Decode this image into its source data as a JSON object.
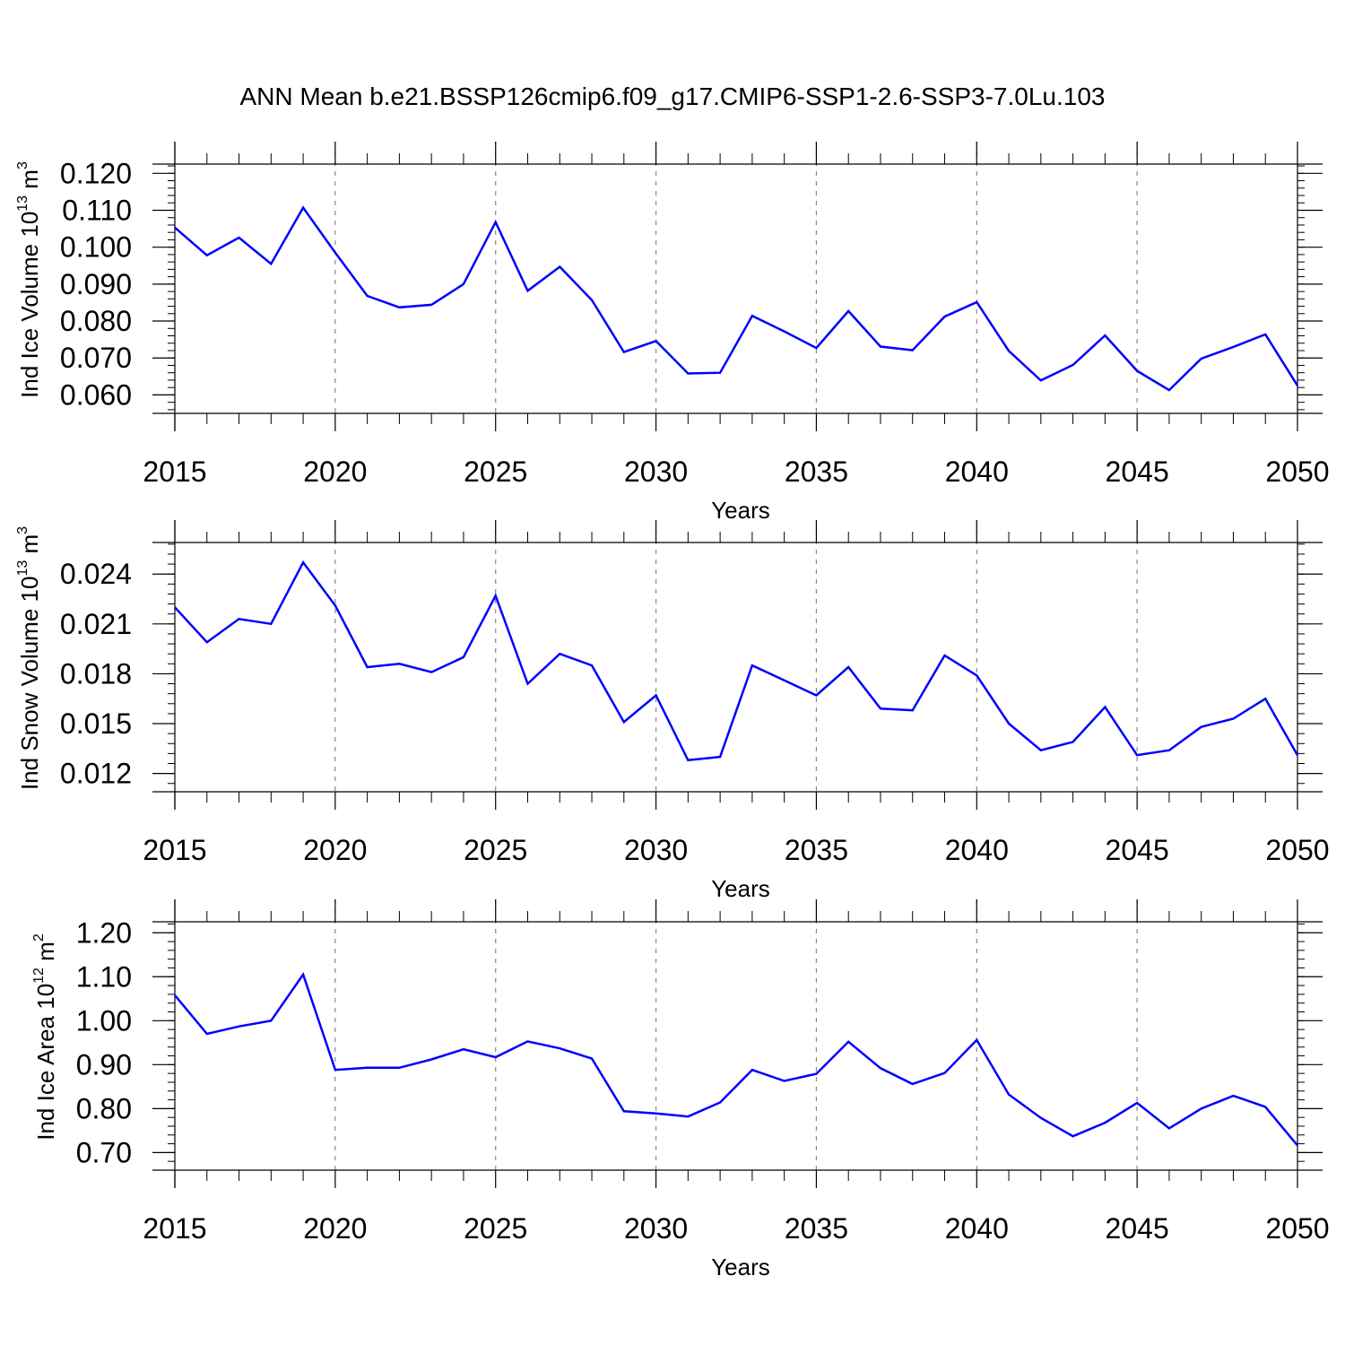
{
  "title": "ANN Mean b.e21.BSSP126cmip6.f09_g17.CMIP6-SSP1-2.6-SSP3-7.0Lu.103",
  "colors": {
    "line": "#0000ff",
    "axis": "#000000",
    "grid": "#888888"
  },
  "chart_data": [
    {
      "type": "line",
      "ylabel": {
        "text": "Ind Ice Volume 10",
        "exp": "13",
        "unit": " m",
        "unit_exp": "3"
      },
      "xlabel": "Years",
      "xlim": [
        2015,
        2050
      ],
      "ylim": [
        0.055,
        0.1225
      ],
      "yticks": [
        "0.060",
        "0.070",
        "0.080",
        "0.090",
        "0.100",
        "0.110",
        "0.120"
      ],
      "xticks": [
        "2015",
        "2020",
        "2025",
        "2030",
        "2035",
        "2040",
        "2045",
        "2050"
      ],
      "grid": "dashed vertical at major x ticks",
      "x": [
        2015,
        2016,
        2017,
        2018,
        2019,
        2020,
        2021,
        2022,
        2023,
        2024,
        2025,
        2026,
        2027,
        2028,
        2029,
        2030,
        2031,
        2032,
        2033,
        2034,
        2035,
        2036,
        2037,
        2038,
        2039,
        2040,
        2041,
        2042,
        2043,
        2044,
        2045,
        2046,
        2047,
        2048,
        2049,
        2050
      ],
      "y": [
        0.1053,
        0.0978,
        0.1026,
        0.0955,
        0.1107,
        0.0985,
        0.0868,
        0.0837,
        0.0844,
        0.09,
        0.1068,
        0.0882,
        0.0947,
        0.0857,
        0.0716,
        0.0746,
        0.0658,
        0.066,
        0.0814,
        0.0772,
        0.0727,
        0.0827,
        0.0731,
        0.0721,
        0.0812,
        0.0851,
        0.0719,
        0.0639,
        0.0681,
        0.0761,
        0.0665,
        0.0613,
        0.0698,
        0.073,
        0.0764,
        0.0625
      ]
    },
    {
      "type": "line",
      "ylabel": {
        "text": "Ind Snow Volume 10",
        "exp": "13",
        "unit": " m",
        "unit_exp": "3"
      },
      "xlabel": "Years",
      "xlim": [
        2015,
        2050
      ],
      "ylim": [
        0.0109,
        0.0259
      ],
      "yticks": [
        "0.012",
        "0.015",
        "0.018",
        "0.021",
        "0.024"
      ],
      "xticks": [
        "2015",
        "2020",
        "2025",
        "2030",
        "2035",
        "2040",
        "2045",
        "2050"
      ],
      "grid": "dashed vertical at major x ticks",
      "x": [
        2015,
        2016,
        2017,
        2018,
        2019,
        2020,
        2021,
        2022,
        2023,
        2024,
        2025,
        2026,
        2027,
        2028,
        2029,
        2030,
        2031,
        2032,
        2033,
        2034,
        2035,
        2036,
        2037,
        2038,
        2039,
        2040,
        2041,
        2042,
        2043,
        2044,
        2045,
        2046,
        2047,
        2048,
        2049,
        2050
      ],
      "y": [
        0.022,
        0.0199,
        0.0213,
        0.021,
        0.0247,
        0.0221,
        0.0184,
        0.0186,
        0.0181,
        0.019,
        0.0227,
        0.0174,
        0.0192,
        0.0185,
        0.0151,
        0.0167,
        0.0128,
        0.013,
        0.0185,
        0.0176,
        0.0167,
        0.0184,
        0.0159,
        0.0158,
        0.0191,
        0.0179,
        0.015,
        0.0134,
        0.0139,
        0.016,
        0.0131,
        0.0134,
        0.0148,
        0.0153,
        0.0165,
        0.0131
      ]
    },
    {
      "type": "line",
      "ylabel": {
        "text": "Ind Ice Area 10",
        "exp": "12",
        "unit": " m",
        "unit_exp": "2"
      },
      "xlabel": "Years",
      "xlim": [
        2015,
        2050
      ],
      "ylim": [
        0.66,
        1.225
      ],
      "yticks": [
        "0.70",
        "0.80",
        "0.90",
        "1.00",
        "1.10",
        "1.20"
      ],
      "xticks": [
        "2015",
        "2020",
        "2025",
        "2030",
        "2035",
        "2040",
        "2045",
        "2050"
      ],
      "grid": "dashed vertical at major x ticks",
      "x": [
        2015,
        2016,
        2017,
        2018,
        2019,
        2020,
        2021,
        2022,
        2023,
        2024,
        2025,
        2026,
        2027,
        2028,
        2029,
        2030,
        2031,
        2032,
        2033,
        2034,
        2035,
        2036,
        2037,
        2038,
        2039,
        2040,
        2041,
        2042,
        2043,
        2044,
        2045,
        2046,
        2047,
        2048,
        2049,
        2050
      ],
      "y": [
        1.058,
        0.97,
        0.987,
        1.0,
        1.105,
        0.888,
        0.893,
        0.893,
        0.912,
        0.935,
        0.917,
        0.953,
        0.937,
        0.914,
        0.794,
        0.789,
        0.782,
        0.814,
        0.888,
        0.863,
        0.879,
        0.952,
        0.892,
        0.856,
        0.881,
        0.956,
        0.832,
        0.779,
        0.737,
        0.768,
        0.813,
        0.755,
        0.8,
        0.829,
        0.804,
        0.716
      ]
    }
  ]
}
